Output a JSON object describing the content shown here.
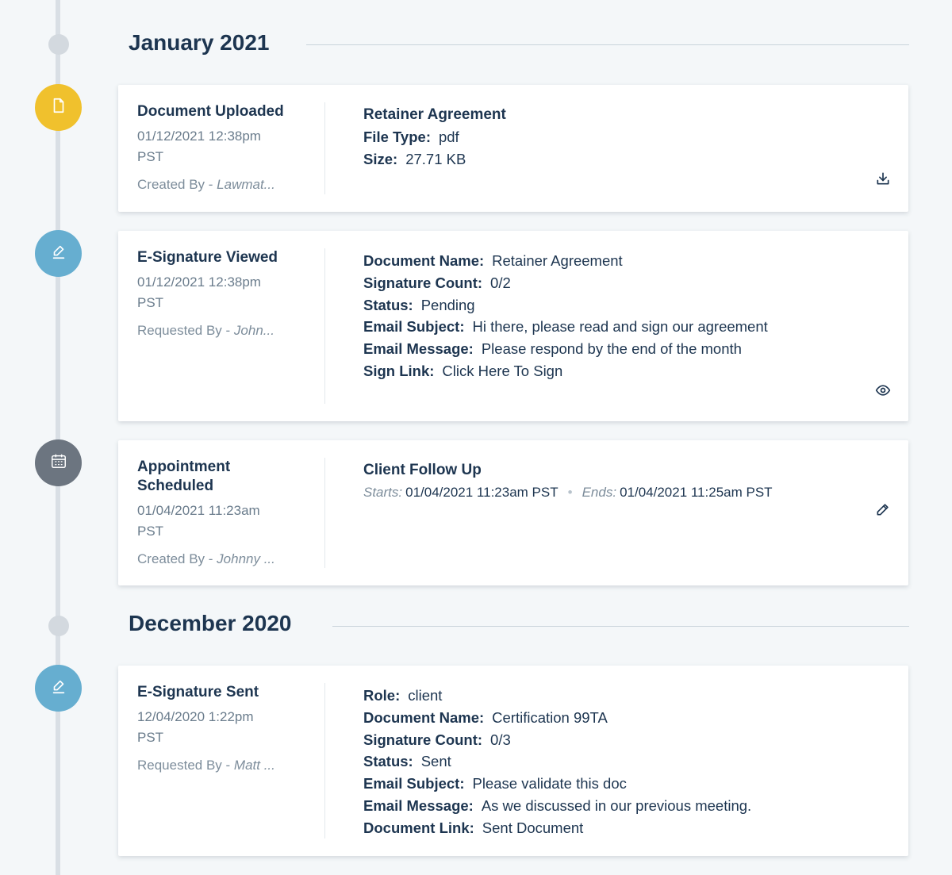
{
  "colors": {
    "document_uploaded": "#f0c12d",
    "esignature": "#66aed0",
    "appointment": "#6c7580",
    "text_primary": "#1d3550",
    "text_muted": "#6a7c8c"
  },
  "months": [
    {
      "label": "January 2021",
      "events": [
        {
          "title": "Document Uploaded",
          "date": "01/12/2021 12:38pm",
          "tz": "PST",
          "author_label": "Created By - ",
          "author_name": "Lawmat...",
          "icon": "file-icon",
          "detail_title": "Retainer Agreement",
          "fields": [
            {
              "label": "File Type:",
              "value": "pdf"
            },
            {
              "label": "Size:",
              "value": "27.71 KB"
            }
          ],
          "action_icon": "download-icon"
        },
        {
          "title": "E-Signature Viewed",
          "date": "01/12/2021 12:38pm",
          "tz": "PST",
          "author_label": "Requested By - ",
          "author_name": "John...",
          "icon": "pen-icon",
          "fields": [
            {
              "label": "Document Name:",
              "value": "Retainer Agreement"
            },
            {
              "label": "Signature Count:",
              "value": "0/2"
            },
            {
              "label": "Status:",
              "value": "Pending"
            },
            {
              "label": "Email Subject:",
              "value": "Hi there, please read and sign our agreement"
            },
            {
              "label": "Email Message:",
              "value": "Please respond by the end of the month"
            },
            {
              "label": "Sign Link:",
              "value": "Click Here To Sign"
            }
          ],
          "action_icon": "eye-icon"
        },
        {
          "title": "Appointment Scheduled",
          "date": "01/04/2021 11:23am",
          "tz": "PST",
          "author_label": "Created By - ",
          "author_name": "Johnny ...",
          "icon": "calendar-icon",
          "detail_title": "Client Follow Up",
          "starts_label": "Starts:",
          "starts_value": "01/04/2021 11:23am PST",
          "separator": "•",
          "ends_label": "Ends:",
          "ends_value": "01/04/2021 11:25am PST",
          "action_icon": "pencil-icon"
        }
      ]
    },
    {
      "label": "December 2020",
      "events": [
        {
          "title": "E-Signature Sent",
          "date": "12/04/2020 1:22pm",
          "tz": "PST",
          "author_label": "Requested By - ",
          "author_name": "Matt ...",
          "icon": "pen-icon",
          "fields": [
            {
              "label": "Role:",
              "value": "client"
            },
            {
              "label": "Document Name:",
              "value": "Certification 99TA"
            },
            {
              "label": "Signature Count:",
              "value": "0/3"
            },
            {
              "label": "Status:",
              "value": "Sent"
            },
            {
              "label": "Email Subject:",
              "value": "Please validate this doc"
            },
            {
              "label": "Email Message:",
              "value": "As we discussed in our previous meeting."
            },
            {
              "label": "Document Link:",
              "value": "Sent Document"
            }
          ]
        }
      ]
    }
  ]
}
